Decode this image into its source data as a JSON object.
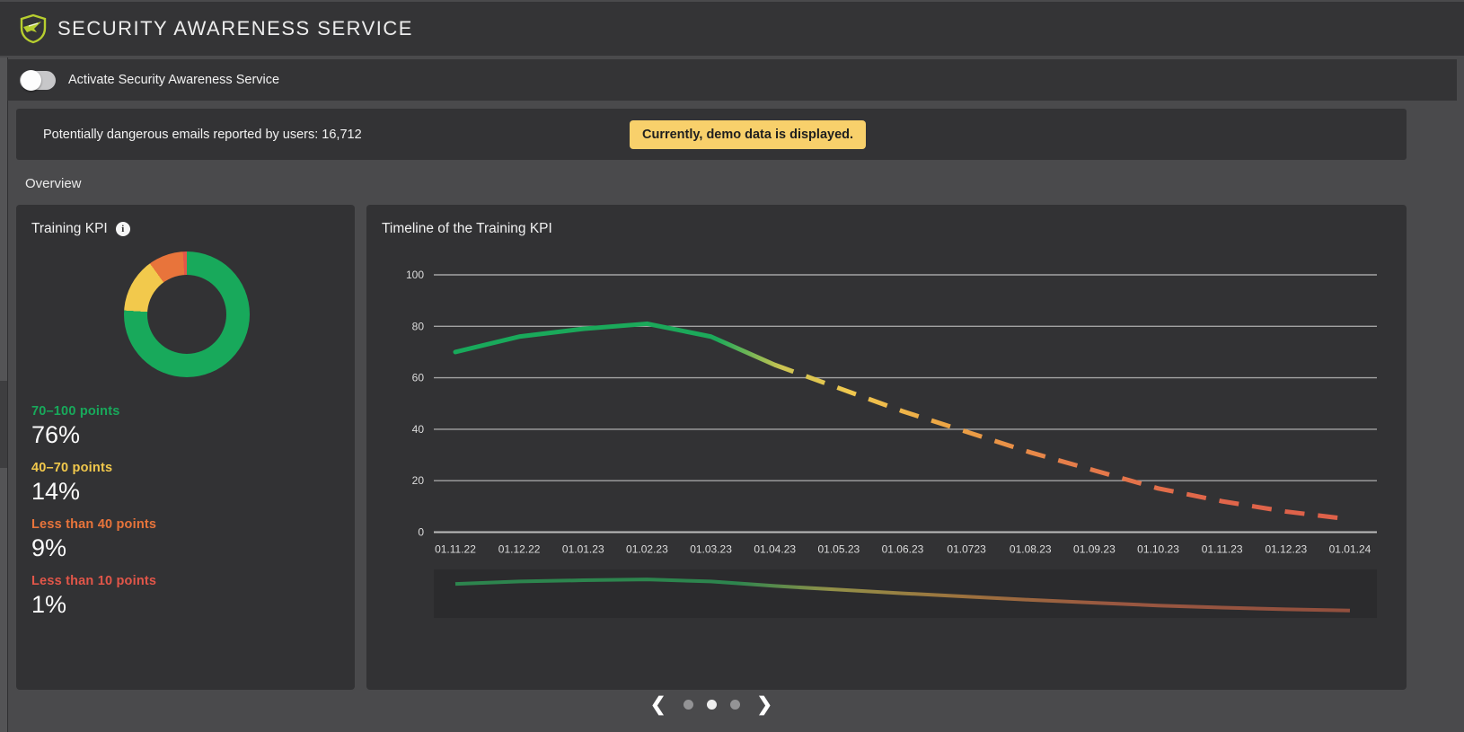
{
  "header": {
    "title": "SECURITY AWARENESS SERVICE"
  },
  "activation": {
    "label": "Activate Security Awareness Service",
    "state": "off"
  },
  "info_bar": {
    "reported_text": "Potentially dangerous emails reported by users: 16,712",
    "demo_badge": "Currently, demo data is displayed.",
    "badge_color": "#f8d06b"
  },
  "section": {
    "title": "Overview"
  },
  "training_kpi": {
    "title": "Training KPI"
  },
  "timeline": {
    "title": "Timeline of the Training KPI"
  },
  "carousel": {
    "dot_count": 3,
    "active_dot": 1,
    "prev": "❮",
    "next": "❯"
  },
  "colors": {
    "green": "#18a95b",
    "yellow": "#f2c94c",
    "orange": "#e8743b",
    "red": "#e25649"
  },
  "chart_data": [
    {
      "type": "pie",
      "subtype": "donut",
      "title": "Training KPI",
      "labels": [
        "70–100 points",
        "40–70 points",
        "Less than 40 points",
        "Less than 10 points"
      ],
      "values": [
        76,
        14,
        9,
        1
      ],
      "display_values": [
        "76%",
        "14%",
        "9%",
        "1%"
      ],
      "colors": [
        "#18a95b",
        "#f2c94c",
        "#e8743b",
        "#e25649"
      ],
      "legend_position": "below"
    },
    {
      "type": "line",
      "title": "Timeline of the Training KPI",
      "x": [
        "01.11.22",
        "01.12.22",
        "01.01.23",
        "01.02.23",
        "01.03.23",
        "01.04.23",
        "01.05.23",
        "01.06.23",
        "01.0723",
        "01.08.23",
        "01.09.23",
        "01.10.23",
        "01.11.23",
        "01.12.23",
        "01.01.24"
      ],
      "values": [
        70,
        76,
        79,
        81,
        76,
        65,
        56,
        47,
        39,
        31,
        24,
        17,
        12,
        8,
        5
      ],
      "ylim": [
        0,
        100
      ],
      "yticks": [
        0,
        20,
        40,
        60,
        80,
        100
      ],
      "grid": true,
      "solid_until_index": 5,
      "line_gradient": [
        [
          0,
          "#18a95b"
        ],
        [
          0.3,
          "#1ca95a"
        ],
        [
          0.37,
          "#cdc452"
        ],
        [
          0.44,
          "#f0c84f"
        ],
        [
          0.55,
          "#eca244"
        ],
        [
          0.67,
          "#e57e4a"
        ],
        [
          0.82,
          "#e0664a"
        ],
        [
          1,
          "#dd5f49"
        ]
      ],
      "navigator_gradient": [
        [
          0,
          "#2d8a50"
        ],
        [
          0.32,
          "#2d8a50"
        ],
        [
          0.42,
          "#98964a"
        ],
        [
          0.56,
          "#a3763f"
        ],
        [
          0.72,
          "#a05a42"
        ],
        [
          1,
          "#96503e"
        ]
      ],
      "navigator": true,
      "legend": "none"
    }
  ]
}
